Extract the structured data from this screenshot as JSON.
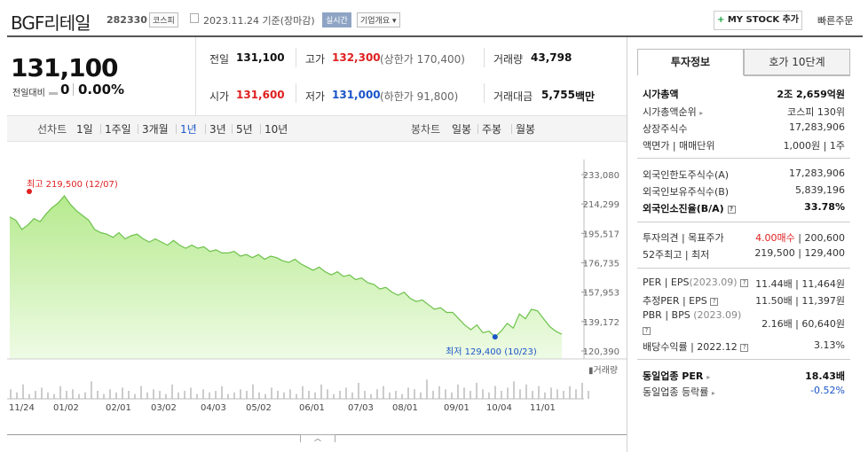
{
  "header": {
    "title": "BGF리테일",
    "code": "282330",
    "market": "코스피",
    "date": "2023.11.24  기준(장마감)",
    "realtime": "실시간",
    "overview": "기업개요 ▾",
    "mystock": "MY STOCK 추가",
    "quick_order": "빠른주문"
  },
  "price": {
    "current": "131,100",
    "change_label": "전일대비",
    "change_value": "0",
    "change_pct": "0.00%"
  },
  "quote": {
    "prev_label": "전일",
    "prev": "131,100",
    "high_label": "고가",
    "high": "132,300",
    "upper_limit": "(상한가 170,400)",
    "volume_label": "거래량",
    "volume": "43,798",
    "open_label": "시가",
    "open": "131,600",
    "low_label": "저가",
    "low": "131,000",
    "lower_limit": "(하한가 91,800)",
    "amount_label": "거래대금",
    "amount": "5,755",
    "amount_unit": "백만"
  },
  "periods": {
    "line_label": "선차트",
    "items": [
      "1일",
      "1주일",
      "3개월",
      "1년",
      "3년",
      "5년",
      "10년"
    ],
    "selected": "1년",
    "candle_label": "봉차트",
    "candle_items": [
      "일봉",
      "주봉",
      "월봉"
    ]
  },
  "chart_data": {
    "type": "area",
    "y_ticks": [
      "233,080",
      "214,299",
      "195,517",
      "176,735",
      "157,953",
      "139,172",
      "120,390"
    ],
    "ylim": [
      120390,
      233080
    ],
    "x_ticks": [
      "11/24",
      "01/02",
      "02/01",
      "03/02",
      "04/03",
      "05/02",
      "06/01",
      "07/03",
      "08/01",
      "09/01",
      "10/04",
      "11/01"
    ],
    "high_label": "최고 219,500 (12/07)",
    "low_label": "최저 129,400 (10/23)",
    "high": 219500,
    "low": 129400,
    "volume_label": "거래량",
    "series": [
      {
        "values": [
          206000,
          204000,
          198000,
          201000,
          205000,
          203000,
          208000,
          212000,
          215000,
          219500,
          214000,
          210000,
          207000,
          204000,
          198000,
          196000,
          195000,
          193000,
          196000,
          192000,
          194000,
          195000,
          192000,
          190000,
          192000,
          190000,
          188000,
          191000,
          188000,
          186000,
          188000,
          186000,
          187000,
          184000,
          185000,
          183000,
          183000,
          184000,
          181000,
          182000,
          180000,
          182000,
          179000,
          181000,
          180000,
          178000,
          177000,
          179000,
          176000,
          174000,
          172000,
          174000,
          171000,
          169000,
          171000,
          168000,
          169000,
          166000,
          167000,
          164000,
          163000,
          160000,
          161000,
          158000,
          156000,
          158000,
          154000,
          152000,
          153000,
          150000,
          147000,
          148000,
          145000,
          145000,
          141000,
          137000,
          134000,
          137000,
          132000,
          133000,
          129400,
          133000,
          138000,
          135000,
          144000,
          141000,
          147000,
          146000,
          141000,
          136000,
          133000,
          131100
        ]
      }
    ]
  },
  "right_panel": {
    "tabs": [
      "투자정보",
      "호가 10단계"
    ],
    "market_cap_label": "시가총액",
    "market_cap": "2조 2,659억원",
    "market_cap_rank_label": "시가총액순위",
    "market_cap_rank": "코스피 130위",
    "shares_label": "상장주식수",
    "shares": "17,283,906",
    "par_label": "액면가 | 매매단위",
    "par": "1,000원 | 1주",
    "foreign_limit_label": "외국인한도주식수(A)",
    "foreign_limit": "17,283,906",
    "foreign_hold_label": "외국인보유주식수(B)",
    "foreign_hold": "5,839,196",
    "foreign_ratio_label": "외국인소진율(B/A)",
    "foreign_ratio": "33.78%",
    "opinion_label": "투자의견 | 목표주가",
    "opinion": "4.00매수",
    "target": "200,600",
    "w52_label": "52주최고 | 최저",
    "w52": "219,500 | 129,400",
    "per_label": "PER | EPS",
    "per_year": "(2023.09)",
    "per": "11.44배 | 11,464원",
    "eper_label": "추정PER | EPS",
    "eper": "11.50배 | 11,397원",
    "pbr_label": "PBR | BPS",
    "pbr_year": "(2023.09)",
    "pbr": "2.16배 | 60,640원",
    "div_label": "배당수익률 | 2022.12",
    "div": "3.13%",
    "sector_per_label": "동일업종 PER",
    "sector_per": "18.43배",
    "sector_chg_label": "동일업종 등락률",
    "sector_chg": "-0.52%"
  }
}
